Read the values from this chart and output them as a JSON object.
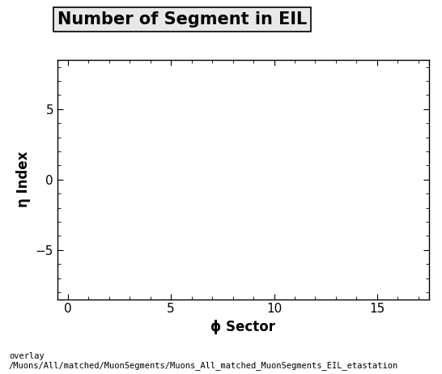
{
  "title": "Number of Segment in EIL",
  "xlabel": "ϕ Sector",
  "ylabel": "η Index",
  "xlim": [
    -0.5,
    17.5
  ],
  "ylim": [
    -8.5,
    8.5
  ],
  "xticks": [
    0,
    5,
    10,
    15
  ],
  "yticks": [
    -5,
    0,
    5
  ],
  "title_fontsize": 15,
  "axis_label_fontsize": 12,
  "tick_fontsize": 11,
  "footer_text": "overlay\n/Muons/All/matched/MuonSegments/Muons_All_matched_MuonSegments_EIL_etastation",
  "footer_fontsize": 7.5,
  "background_color": "#ffffff",
  "plot_bg_color": "#ffffff",
  "title_box_facecolor": "#e8e8e8",
  "title_box_edgecolor": "#000000"
}
